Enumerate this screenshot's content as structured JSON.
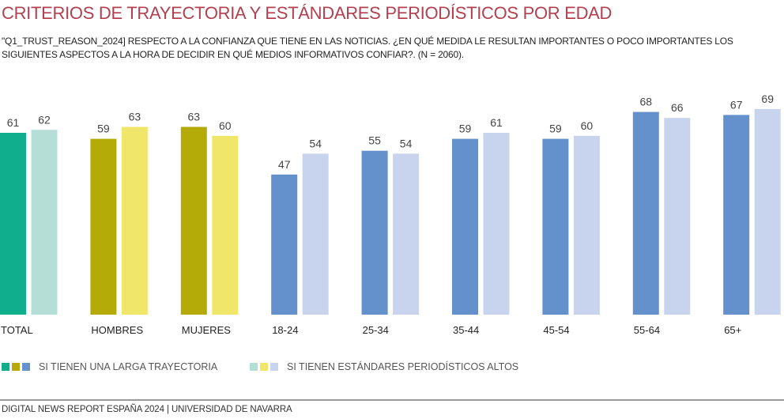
{
  "header": {
    "title": "CRITERIOS DE TRAYECTORIA Y ESTÁNDARES PERIODÍSTICOS POR EDAD",
    "subtitle": "\"Q1_TRUST_REASON_2024] RESPECTO A LA CONFIANZA QUE TIENE EN LAS NOTICIAS. ¿EN QUÉ MEDIDA LE RESULTAN IMPORTANTES O POCO IMPORTANTES LOS SIGUIENTES ASPECTOS A LA HORA DE DECIDIR EN QUÉ MEDIOS INFORMATIVOS CONFIAR?. (N = 2060)."
  },
  "chart_data": {
    "type": "bar",
    "title": "CRITERIOS DE TRAYECTORIA Y ESTÁNDARES PERIODÍSTICOS POR EDAD",
    "xlabel": "",
    "ylabel": "",
    "ylim": [
      0,
      70
    ],
    "grid": false,
    "legend_position": "bottom-left",
    "categories": [
      "TOTAL",
      "HOMBRES",
      "MUJERES",
      "18-24",
      "25-34",
      "35-44",
      "45-54",
      "55-64",
      "65+"
    ],
    "series": [
      {
        "name": "SI TIENEN UNA LARGA TRAYECTORIA",
        "values": [
          61,
          59,
          63,
          47,
          55,
          59,
          59,
          68,
          67
        ],
        "colors": [
          "#0fae8c",
          "#b5ab08",
          "#b5ab08",
          "#6490cc",
          "#6490cc",
          "#6490cc",
          "#6490cc",
          "#6490cc",
          "#6490cc"
        ]
      },
      {
        "name": "SI TIENEN ESTÁNDARES PERIODÍSTICOS ALTOS",
        "values": [
          62,
          63,
          60,
          54,
          54,
          61,
          60,
          66,
          69
        ],
        "colors": [
          "#b4ded6",
          "#f0e76a",
          "#f0e76a",
          "#c8d4ee",
          "#c8d4ee",
          "#c8d4ee",
          "#c8d4ee",
          "#c8d4ee",
          "#c8d4ee"
        ]
      }
    ]
  },
  "legend": {
    "items": [
      {
        "label": "SI TIENEN UNA LARGA TRAYECTORIA",
        "swatches": [
          "#0fae8c",
          "#b5ab08",
          "#6490cc"
        ]
      },
      {
        "label": "SI TIENEN ESTÁNDARES PERIODÍSTICOS ALTOS",
        "swatches": [
          "#b4ded6",
          "#f0e76a",
          "#c8d4ee"
        ]
      }
    ]
  },
  "footer": {
    "text": "DIGITAL NEWS REPORT ESPAÑA 2024 | UNIVERSIDAD DE NAVARRA"
  }
}
